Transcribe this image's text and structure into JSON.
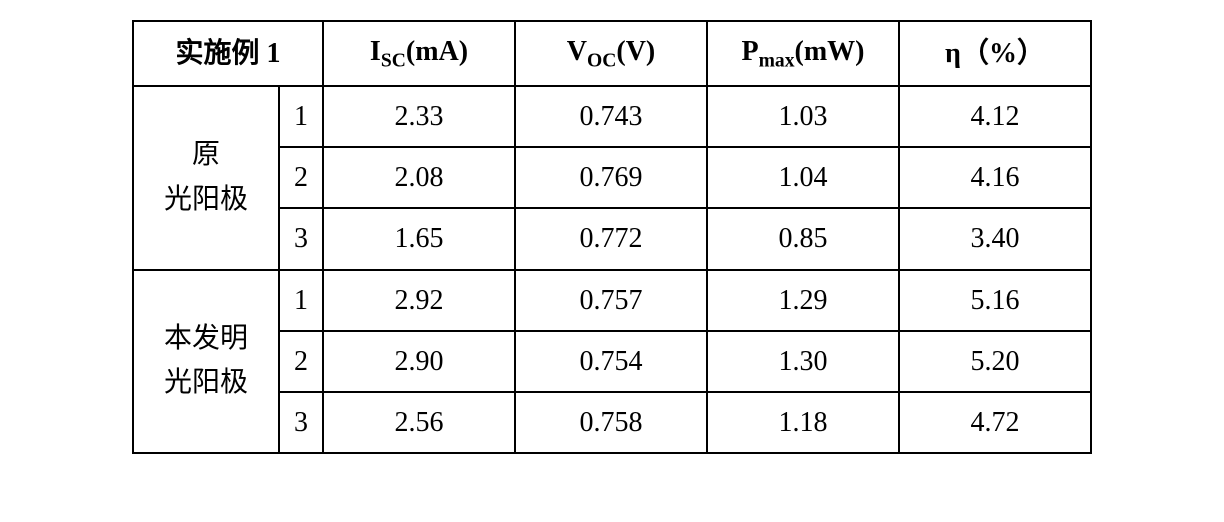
{
  "table": {
    "headers": {
      "title": "实施例 1",
      "isc_pre": "I",
      "isc_sub": "SC",
      "isc_unit": "(mA)",
      "voc_pre": "V",
      "voc_sub": "OC",
      "voc_unit": "(V)",
      "pmax_pre": "P",
      "pmax_sub": "max",
      "pmax_unit": "(mW)",
      "eta_pre": "η",
      "eta_unit": "（%）"
    },
    "groups": {
      "g1_label_l1": "原",
      "g1_label_l2": "光阳极",
      "g2_label_l1": "本发明",
      "g2_label_l2": "光阳极"
    },
    "rows": [
      {
        "idx": "1",
        "isc": "2.33",
        "voc": "0.743",
        "pmax": "1.03",
        "eta": "4.12"
      },
      {
        "idx": "2",
        "isc": "2.08",
        "voc": "0.769",
        "pmax": "1.04",
        "eta": "4.16"
      },
      {
        "idx": "3",
        "isc": "1.65",
        "voc": "0.772",
        "pmax": "0.85",
        "eta": "3.40"
      },
      {
        "idx": "1",
        "isc": "2.92",
        "voc": "0.757",
        "pmax": "1.29",
        "eta": "5.16"
      },
      {
        "idx": "2",
        "isc": "2.90",
        "voc": "0.754",
        "pmax": "1.30",
        "eta": "5.20"
      },
      {
        "idx": "3",
        "isc": "2.56",
        "voc": "0.758",
        "pmax": "1.18",
        "eta": "4.72"
      }
    ],
    "style": {
      "border_color": "#000000",
      "background": "#ffffff",
      "font_size_pt": 28,
      "cell_align": "center"
    }
  }
}
